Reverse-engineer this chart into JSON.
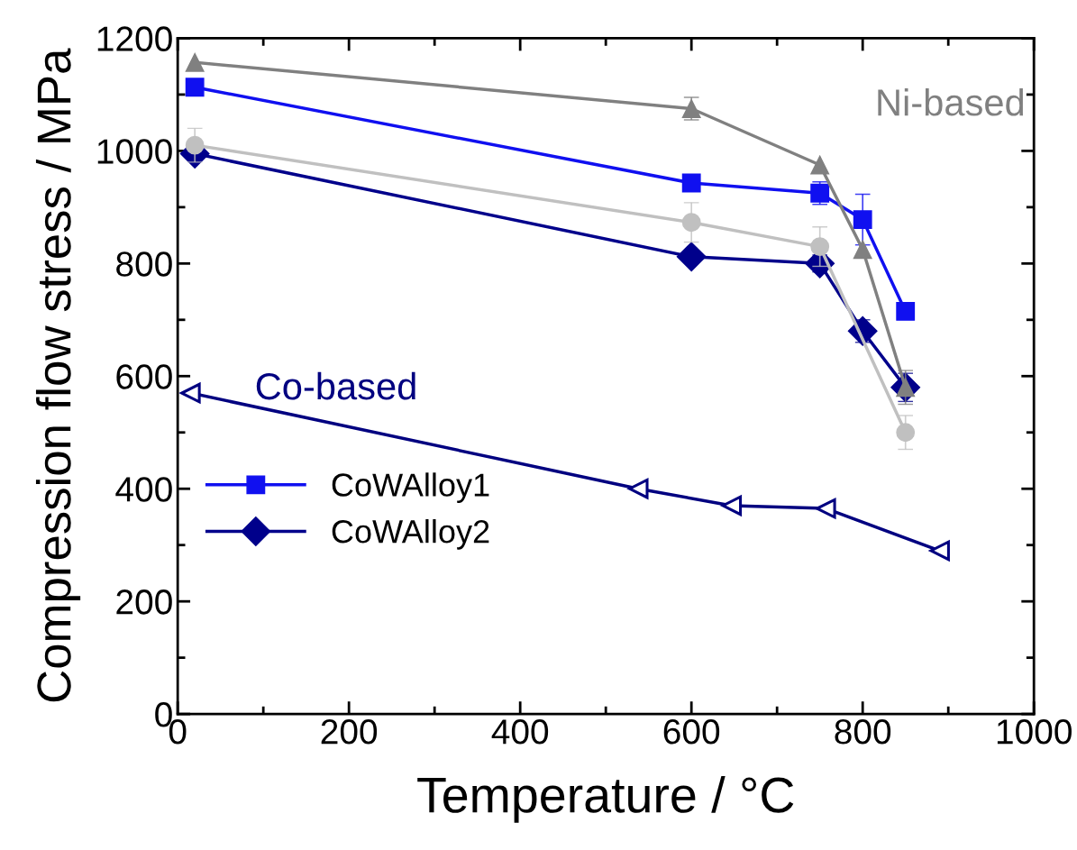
{
  "chart_data": {
    "type": "line",
    "xlabel": "Temperature / °C",
    "ylabel": "Compression flow stress / MPa",
    "xlim": [
      0,
      1000
    ],
    "xticks": [
      0,
      200,
      400,
      600,
      800,
      1000
    ],
    "ylim": [
      0,
      1200
    ],
    "yticks": [
      0,
      200,
      400,
      600,
      800,
      1000,
      1200
    ],
    "grid": false,
    "legend": "bottom left",
    "line_style": "solid",
    "annotations": [
      "Ni-based",
      "Co-based"
    ],
    "series": [
      {
        "name": "CoWAlloy1",
        "color": "#1010f0",
        "marker": "square",
        "x": [
          20,
          600,
          750,
          800,
          850
        ],
        "values": [
          1113,
          943,
          925,
          878,
          715
        ],
        "errors": [
          null,
          null,
          20,
          45,
          null
        ]
      },
      {
        "name": "CoWAlloy2",
        "color": "#00008b",
        "marker": "diamond",
        "x": [
          20,
          600,
          750,
          800,
          850
        ],
        "values": [
          995,
          812,
          800,
          680,
          580
        ],
        "errors": [
          null,
          null,
          15,
          20,
          25
        ]
      },
      {
        "color": "#808080",
        "marker": "triangle",
        "x": [
          20,
          600,
          750,
          800,
          850
        ],
        "values": [
          1157,
          1075,
          975,
          825,
          580
        ],
        "errors": [
          null,
          20,
          null,
          null,
          30
        ]
      },
      {
        "color": "#c0c0c0",
        "marker": "circle",
        "x": [
          20,
          600,
          750,
          850
        ],
        "values": [
          1010,
          873,
          830,
          500
        ],
        "errors": [
          30,
          35,
          35,
          30
        ]
      },
      {
        "color": "#000080",
        "marker": "triangle_left_open",
        "x": [
          15,
          538,
          647,
          757,
          890
        ],
        "values": [
          570,
          400,
          370,
          365,
          290
        ]
      }
    ]
  }
}
